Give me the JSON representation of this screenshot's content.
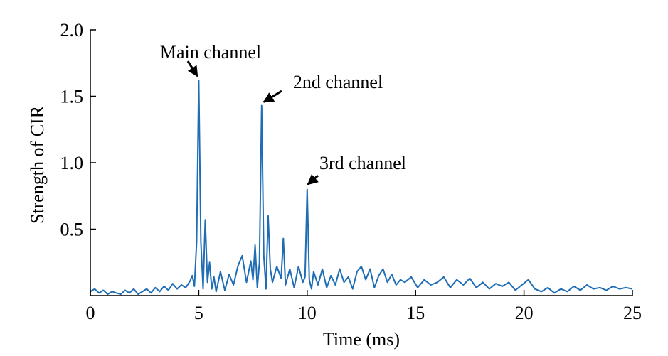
{
  "chart_data": {
    "type": "line",
    "title": "",
    "xlabel": "Time (ms)",
    "ylabel": "Strength of CIR",
    "xlim": [
      0,
      25
    ],
    "ylim": [
      0,
      2.0
    ],
    "xticks": [
      0,
      5,
      10,
      15,
      20,
      25
    ],
    "xtick_labels": [
      "0",
      "5",
      "10",
      "15",
      "20",
      "25"
    ],
    "yticks": [
      0.5,
      1.0,
      1.5,
      2.0
    ],
    "ytick_labels": [
      "0.5",
      "1.0",
      "1.5",
      "2.0"
    ],
    "grid": false,
    "line_color": "#1f6db5",
    "series": [
      {
        "x": [
          0,
          0.2,
          0.4,
          0.6,
          0.8,
          1.0,
          1.2,
          1.4,
          1.6,
          1.8,
          2.0,
          2.2,
          2.4,
          2.6,
          2.8,
          3.0,
          3.2,
          3.4,
          3.6,
          3.8,
          4.0,
          4.2,
          4.4,
          4.6,
          4.7,
          4.8,
          4.9,
          5.0,
          5.1,
          5.2,
          5.3,
          5.4,
          5.5,
          5.6,
          5.7,
          5.8,
          6.0,
          6.2,
          6.4,
          6.6,
          6.8,
          7.0,
          7.2,
          7.4,
          7.5,
          7.6,
          7.7,
          7.8,
          7.9,
          8.0,
          8.1,
          8.2,
          8.3,
          8.4,
          8.6,
          8.8,
          8.9,
          9.0,
          9.2,
          9.4,
          9.6,
          9.8,
          9.9,
          10.0,
          10.1,
          10.2,
          10.3,
          10.5,
          10.7,
          10.9,
          11.1,
          11.3,
          11.5,
          11.7,
          11.9,
          12.1,
          12.3,
          12.5,
          12.7,
          12.9,
          13.1,
          13.3,
          13.5,
          13.7,
          13.9,
          14.1,
          14.3,
          14.5,
          14.8,
          15.1,
          15.4,
          15.7,
          16.0,
          16.3,
          16.6,
          16.9,
          17.2,
          17.5,
          17.8,
          18.1,
          18.4,
          18.7,
          19.0,
          19.3,
          19.6,
          19.9,
          20.2,
          20.5,
          20.8,
          21.1,
          21.4,
          21.7,
          22.0,
          22.3,
          22.6,
          22.9,
          23.2,
          23.5,
          23.8,
          24.1,
          24.4,
          24.7,
          25.0
        ],
        "values": [
          0.03,
          0.05,
          0.02,
          0.04,
          0.01,
          0.03,
          0.02,
          0.01,
          0.04,
          0.02,
          0.05,
          0.01,
          0.03,
          0.05,
          0.02,
          0.06,
          0.03,
          0.07,
          0.04,
          0.09,
          0.05,
          0.08,
          0.06,
          0.11,
          0.15,
          0.07,
          0.4,
          1.62,
          0.4,
          0.05,
          0.57,
          0.1,
          0.25,
          0.05,
          0.14,
          0.03,
          0.18,
          0.04,
          0.16,
          0.08,
          0.22,
          0.3,
          0.1,
          0.26,
          0.12,
          0.38,
          0.06,
          0.25,
          1.43,
          0.3,
          0.05,
          0.6,
          0.2,
          0.1,
          0.22,
          0.13,
          0.43,
          0.08,
          0.2,
          0.06,
          0.22,
          0.1,
          0.14,
          0.8,
          0.12,
          0.05,
          0.18,
          0.08,
          0.2,
          0.06,
          0.15,
          0.08,
          0.2,
          0.1,
          0.14,
          0.05,
          0.18,
          0.22,
          0.12,
          0.2,
          0.06,
          0.15,
          0.2,
          0.1,
          0.16,
          0.08,
          0.12,
          0.1,
          0.14,
          0.06,
          0.12,
          0.08,
          0.1,
          0.14,
          0.06,
          0.12,
          0.08,
          0.13,
          0.06,
          0.1,
          0.05,
          0.09,
          0.07,
          0.1,
          0.04,
          0.08,
          0.12,
          0.05,
          0.03,
          0.06,
          0.02,
          0.05,
          0.03,
          0.07,
          0.04,
          0.08,
          0.05,
          0.06,
          0.04,
          0.07,
          0.05,
          0.06,
          0.05
        ]
      }
    ],
    "annotations": [
      {
        "text": "Main channel",
        "x": 5.0,
        "y": 1.62
      },
      {
        "text": "2nd channel",
        "x": 7.9,
        "y": 1.43
      },
      {
        "text": "3rd channel",
        "x": 10.0,
        "y": 0.8
      }
    ]
  }
}
